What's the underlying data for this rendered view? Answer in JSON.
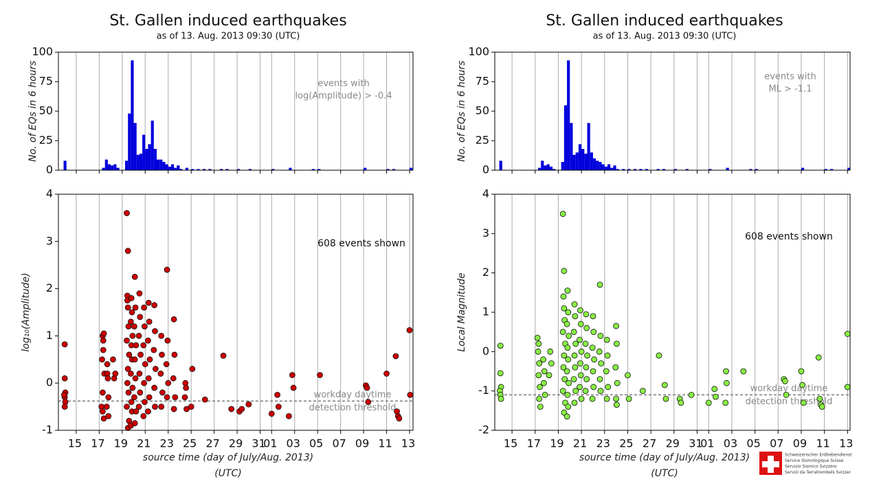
{
  "chart_data": [
    {
      "type": "histogram",
      "title": "St. Gallen induced earthquakes",
      "subtitle": "as of 13. Aug. 2013 09:30 (UTC)",
      "ylabel": "No. of EQs in 6 hours",
      "annotation": [
        "events with",
        "log(Amplitude) > -0.4"
      ],
      "color": "#0000dd",
      "bar_width": 0.25,
      "x": [
        13.9,
        17.25,
        17.5,
        17.75,
        18.0,
        18.25,
        18.5,
        19.25,
        19.5,
        19.75,
        20.0,
        20.25,
        20.5,
        20.75,
        21.0,
        21.25,
        21.5,
        21.75,
        22.0,
        22.25,
        22.5,
        22.75,
        23.0,
        23.25,
        23.5,
        23.75,
        24.0,
        24.5,
        25.0,
        25.5,
        26.0,
        26.5,
        27.5,
        28.0,
        29.0,
        30.0,
        32.0,
        33.5,
        35.5,
        36.0,
        40.0,
        42.0,
        42.5,
        44.0
      ],
      "values": [
        8,
        2,
        9,
        5,
        4,
        5,
        2,
        8,
        48,
        93,
        40,
        13,
        14,
        30,
        18,
        22,
        42,
        18,
        9,
        9,
        7,
        5,
        3,
        5,
        2,
        4,
        1,
        2,
        1,
        1,
        1,
        1,
        1,
        1,
        1,
        1,
        1,
        2,
        1,
        1,
        2,
        1,
        1,
        2
      ],
      "xlim": [
        13.45,
        44.3
      ],
      "xticks": [
        15,
        17,
        19,
        21,
        23,
        25,
        27,
        29,
        31,
        {
          "value": 32,
          "label": "01"
        },
        {
          "value": 34,
          "label": "03"
        },
        {
          "value": 36,
          "label": "05"
        },
        {
          "value": 38,
          "label": "07"
        },
        {
          "value": 40,
          "label": "09"
        },
        {
          "value": 42,
          "label": "11"
        },
        {
          "value": 44,
          "label": "13"
        }
      ],
      "ylim": [
        0,
        100
      ],
      "yticks": [
        0,
        25,
        50,
        75,
        100
      ],
      "grid": true
    },
    {
      "type": "scatter",
      "ylabel": "log₁₀(Amplitude)",
      "xlabel": [
        "source time (day of July/Aug. 2013)",
        "(UTC)"
      ],
      "note": "608 events shown",
      "threshold": -0.38,
      "threshold_label": [
        "workday daytime",
        "detection threshold"
      ],
      "color": "#cc0000",
      "x": [
        14.0,
        14.0,
        14.05,
        14.0,
        14.05,
        14.0,
        13.95,
        17.2,
        17.3,
        17.25,
        17.35,
        17.3,
        17.4,
        17.35,
        17.45,
        17.3,
        17.4,
        17.7,
        17.75,
        17.8,
        17.65,
        17.7,
        17.8,
        18.3,
        18.4,
        18.2,
        19.4,
        19.5,
        19.45,
        19.5,
        19.55,
        19.4,
        19.6,
        19.5,
        19.45,
        19.55,
        19.4,
        19.6,
        19.5,
        19.45,
        19.8,
        19.85,
        19.75,
        19.9,
        19.8,
        19.85,
        19.75,
        19.9,
        19.8,
        19.85,
        19.75,
        20.1,
        20.15,
        20.05,
        20.2,
        20.1,
        20.15,
        20.05,
        20.2,
        20.1,
        20.5,
        20.55,
        20.45,
        20.6,
        20.5,
        20.55,
        20.45,
        20.9,
        20.95,
        20.85,
        21.0,
        20.9,
        20.95,
        20.85,
        21.3,
        21.35,
        21.25,
        21.4,
        21.3,
        21.35,
        21.25,
        21.8,
        21.85,
        21.75,
        21.9,
        21.8,
        21.85,
        22.4,
        22.45,
        22.35,
        22.5,
        22.4,
        22.9,
        22.95,
        22.85,
        23.0,
        22.9,
        23.5,
        23.55,
        23.45,
        23.6,
        23.5,
        24.5,
        24.55,
        24.45,
        24.6,
        25.0,
        25.1,
        26.2,
        27.8,
        28.5,
        29.2,
        29.4,
        30.0,
        32.0,
        32.5,
        32.6,
        33.5,
        33.8,
        33.9,
        36.2,
        40.2,
        40.3,
        40.4,
        42.0,
        42.9,
        43.0,
        42.8,
        43.1,
        44.0,
        44.05
      ],
      "values": [
        0.82,
        0.1,
        -0.2,
        -0.3,
        -0.4,
        -0.5,
        -0.25,
        -0.5,
        -0.6,
        0.5,
        0.7,
        1.0,
        1.05,
        0.9,
        0.2,
        -0.2,
        -0.75,
        0.2,
        0.1,
        -0.3,
        -0.5,
        0.4,
        -0.7,
        0.1,
        0.2,
        0.5,
        3.6,
        2.8,
        1.85,
        1.6,
        1.2,
        0.9,
        0.6,
        0.3,
        0.0,
        -0.2,
        -0.5,
        -0.8,
        -0.95,
        1.75,
        1.8,
        1.5,
        1.3,
        1.0,
        0.8,
        0.5,
        0.2,
        -0.1,
        -0.4,
        -0.6,
        -0.9,
        2.25,
        1.6,
        1.2,
        0.8,
        0.5,
        0.1,
        -0.3,
        -0.6,
        -0.85,
        1.9,
        1.4,
        1.0,
        0.6,
        0.2,
        -0.2,
        -0.5,
        1.6,
        1.2,
        0.8,
        0.4,
        0.0,
        -0.4,
        -0.7,
        1.7,
        1.3,
        0.9,
        0.5,
        0.1,
        -0.3,
        -0.6,
        1.65,
        1.1,
        0.7,
        0.3,
        -0.1,
        -0.5,
        1.0,
        0.6,
        0.2,
        -0.2,
        -0.5,
        2.4,
        0.9,
        0.4,
        0.0,
        -0.3,
        1.35,
        0.6,
        0.1,
        -0.3,
        -0.55,
        0.0,
        -0.1,
        -0.3,
        -0.55,
        -0.5,
        0.3,
        -0.35,
        0.58,
        -0.55,
        -0.6,
        -0.55,
        -0.45,
        -0.65,
        -0.25,
        -0.5,
        -0.7,
        0.17,
        -0.1,
        0.17,
        -0.05,
        -0.1,
        -0.4,
        0.2,
        -0.6,
        -0.7,
        0.57,
        -0.75,
        1.12,
        -0.25
      ],
      "xlim": [
        13.45,
        44.3
      ],
      "xticks": [
        15,
        17,
        19,
        21,
        23,
        25,
        27,
        29,
        31,
        {
          "value": 32,
          "label": "01"
        },
        {
          "value": 34,
          "label": "03"
        },
        {
          "value": 36,
          "label": "05"
        },
        {
          "value": 38,
          "label": "07"
        },
        {
          "value": 40,
          "label": "09"
        },
        {
          "value": 42,
          "label": "11"
        },
        {
          "value": 44,
          "label": "13"
        }
      ],
      "ylim": [
        -1,
        4
      ],
      "yticks": [
        -1,
        0,
        1,
        2,
        3,
        4
      ],
      "grid": true
    },
    {
      "type": "histogram",
      "title": "St. Gallen induced earthquakes",
      "subtitle": "as of 13. Aug. 2013 09:30 (UTC)",
      "ylabel": "No. of EQs in 6 hours",
      "annotation": [
        "events with",
        "ML > -1.1"
      ],
      "color": "#0000dd",
      "bar_width": 0.25,
      "x": [
        13.9,
        17.25,
        17.5,
        17.75,
        18.0,
        18.25,
        18.5,
        19.25,
        19.5,
        19.75,
        20.0,
        20.25,
        20.5,
        20.75,
        21.0,
        21.25,
        21.5,
        21.75,
        22.0,
        22.25,
        22.5,
        22.75,
        23.0,
        23.25,
        23.5,
        23.75,
        24.0,
        24.5,
        25.0,
        25.5,
        26.0,
        26.5,
        27.5,
        28.0,
        29.0,
        30.0,
        32.0,
        33.5,
        35.5,
        36.0,
        40.0,
        42.0,
        42.5,
        44.0
      ],
      "values": [
        8,
        2,
        8,
        4,
        5,
        3,
        1,
        7,
        55,
        93,
        40,
        13,
        15,
        22,
        18,
        14,
        40,
        15,
        10,
        8,
        7,
        5,
        3,
        5,
        2,
        4,
        1,
        1,
        1,
        1,
        1,
        1,
        1,
        1,
        1,
        1,
        1,
        2,
        1,
        1,
        2,
        1,
        1,
        2
      ],
      "xlim": [
        13.51,
        44.22
      ],
      "xticks": [
        15,
        17,
        19,
        21,
        23,
        25,
        27,
        29,
        31,
        {
          "value": 32,
          "label": "01"
        },
        {
          "value": 34,
          "label": "03"
        },
        {
          "value": 36,
          "label": "05"
        },
        {
          "value": 38,
          "label": "07"
        },
        {
          "value": 40,
          "label": "09"
        },
        {
          "value": 42,
          "label": "11"
        },
        {
          "value": 44,
          "label": "13"
        }
      ],
      "ylim": [
        0,
        100
      ],
      "yticks": [
        0,
        25,
        50,
        75,
        100
      ],
      "grid": true
    },
    {
      "type": "scatter",
      "ylabel": "Local Magnitude",
      "xlabel": [
        "source time (day of July/Aug. 2013)",
        "(UTC)"
      ],
      "note": "608 events shown",
      "threshold": -1.1,
      "threshold_label": [
        "workday daytime",
        "detection threshold"
      ],
      "color": "#88ee44",
      "x": [
        14.0,
        14.0,
        14.05,
        13.95,
        14.0,
        14.05,
        17.2,
        17.3,
        17.25,
        17.35,
        17.3,
        17.4,
        17.35,
        17.45,
        17.7,
        17.8,
        17.75,
        17.85,
        18.3,
        18.4,
        18.2,
        19.4,
        19.5,
        19.45,
        19.5,
        19.55,
        19.4,
        19.6,
        19.5,
        19.45,
        19.55,
        19.4,
        19.6,
        19.5,
        19.8,
        19.85,
        19.75,
        19.9,
        19.8,
        19.85,
        19.75,
        19.9,
        19.8,
        19.85,
        19.75,
        20.4,
        20.45,
        20.35,
        20.5,
        20.4,
        20.45,
        20.35,
        20.5,
        20.4,
        20.9,
        20.95,
        20.85,
        21.0,
        20.9,
        20.95,
        20.85,
        21.0,
        21.4,
        21.45,
        21.35,
        21.5,
        21.4,
        21.45,
        21.35,
        22.0,
        22.05,
        21.95,
        22.1,
        22.0,
        22.05,
        21.95,
        22.6,
        22.65,
        22.55,
        22.7,
        22.6,
        22.65,
        23.2,
        23.25,
        23.15,
        23.3,
        23.2,
        24.0,
        24.05,
        23.95,
        24.1,
        24.0,
        24.05,
        25.0,
        25.1,
        26.3,
        27.7,
        28.2,
        28.3,
        29.5,
        29.6,
        30.5,
        32.0,
        32.5,
        32.6,
        33.5,
        33.55,
        33.45,
        35.0,
        38.5,
        38.6,
        38.7,
        40.0,
        40.1,
        40.2,
        41.5,
        41.6,
        41.7,
        41.8,
        44.0,
        44.0
      ],
      "values": [
        0.15,
        -0.55,
        -0.9,
        -1.0,
        -1.1,
        -1.2,
        0.35,
        0.2,
        0.0,
        -0.3,
        -0.6,
        -0.9,
        -1.2,
        -1.4,
        -0.2,
        -0.5,
        -0.8,
        -1.1,
        0.0,
        -0.3,
        -0.6,
        3.5,
        2.05,
        1.4,
        1.1,
        0.8,
        0.5,
        0.2,
        -0.1,
        -0.4,
        -0.7,
        -1.0,
        -1.3,
        -1.55,
        1.55,
        1.0,
        0.7,
        0.4,
        0.1,
        -0.2,
        -0.5,
        -0.8,
        -1.1,
        -1.4,
        -1.65,
        1.2,
        0.9,
        0.5,
        0.2,
        -0.1,
        -0.4,
        -0.7,
        -1.0,
        -1.3,
        1.05,
        0.7,
        0.3,
        0.0,
        -0.3,
        -0.6,
        -0.9,
        -1.2,
        0.95,
        0.6,
        0.2,
        -0.1,
        -0.4,
        -0.7,
        -1.0,
        0.9,
        0.5,
        0.1,
        -0.2,
        -0.5,
        -0.9,
        -1.2,
        1.7,
        0.4,
        0.0,
        -0.3,
        -0.7,
        -1.0,
        0.3,
        -0.1,
        -0.5,
        -0.9,
        -1.2,
        0.65,
        0.2,
        -0.4,
        -0.8,
        -1.2,
        -1.35,
        -0.6,
        -1.2,
        -1.0,
        -0.1,
        -0.85,
        -1.2,
        -1.2,
        -1.3,
        -1.1,
        -1.3,
        -0.95,
        -1.15,
        -0.5,
        -0.8,
        -1.3,
        -0.5,
        -0.7,
        -0.75,
        -1.1,
        -0.5,
        -0.85,
        -1.3,
        -0.15,
        -1.2,
        -1.35,
        -1.4,
        0.45,
        -0.9
      ],
      "xlim": [
        13.51,
        44.22
      ],
      "xticks": [
        15,
        17,
        19,
        21,
        23,
        25,
        27,
        29,
        31,
        {
          "value": 32,
          "label": "01"
        },
        {
          "value": 34,
          "label": "03"
        },
        {
          "value": 36,
          "label": "05"
        },
        {
          "value": 38,
          "label": "07"
        },
        {
          "value": 40,
          "label": "09"
        },
        {
          "value": 42,
          "label": "11"
        },
        {
          "value": 44,
          "label": "13"
        }
      ],
      "ylim": [
        -2,
        4
      ],
      "yticks": [
        -2,
        -1,
        0,
        1,
        2,
        3,
        4
      ],
      "grid": true
    }
  ],
  "logo": {
    "lines": [
      "Schweizerischer Erdbebendienst",
      "Service Sismologique Suisse",
      "Servizio Sismico Svizzero",
      "Servizi da Terratrembels Svizzer"
    ]
  }
}
